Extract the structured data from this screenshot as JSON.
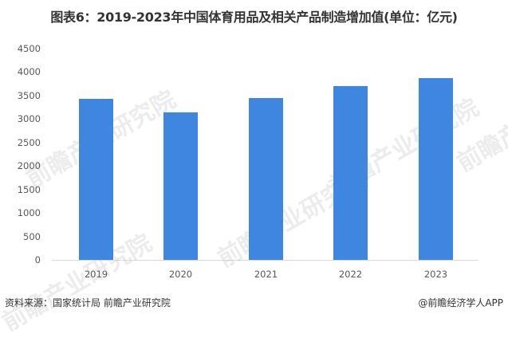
{
  "title": "图表6：2019-2023年中国体育用品及相关产品制造增加值(单位：亿元)",
  "footer": {
    "source": "资料来源：国家统计局 前瞻产业研究院",
    "credit": "@前瞻经济学人APP"
  },
  "watermark": "前瞻产业研究院",
  "colors": {
    "bar": "#3f86e0",
    "axis": "#d9d9d9",
    "tick_text": "#595959"
  },
  "chart_data": {
    "type": "bar",
    "title": "图表6：2019-2023年中国体育用品及相关产品制造增加值(单位：亿元)",
    "xlabel": "",
    "ylabel": "亿元",
    "categories": [
      "2019",
      "2020",
      "2021",
      "2022",
      "2023"
    ],
    "values": [
      3430,
      3141,
      3447,
      3702,
      3871
    ],
    "ylim": [
      0,
      4500
    ],
    "yticks": [
      "0",
      "500",
      "1000",
      "1500",
      "2000",
      "2500",
      "3000",
      "3500",
      "4000",
      "4500"
    ],
    "grid": false,
    "legend": null
  }
}
